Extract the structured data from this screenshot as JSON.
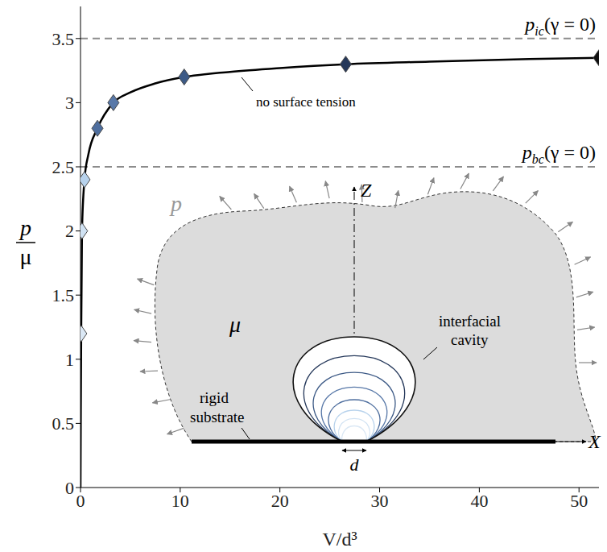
{
  "chart_data": {
    "type": "line",
    "xlabel": "V/d³",
    "ylabel": {
      "numerator": "p",
      "denominator": "μ"
    },
    "xlim": [
      0,
      52
    ],
    "xticks": [
      0,
      10,
      20,
      30,
      40,
      50
    ],
    "ylim": [
      0,
      3.75
    ],
    "yticks": [
      0,
      0.5,
      1,
      1.5,
      2,
      2.5,
      3,
      3.5
    ],
    "grid": false,
    "series": [
      {
        "name": "no surface tension",
        "type": "line",
        "color": "#000000",
        "line_style": "solid",
        "x": [
          0,
          0.03,
          0.07,
          0.15,
          0.4,
          0.8,
          1.7,
          3.3,
          5,
          7.5,
          10.4,
          15,
          20,
          26.6,
          35,
          45,
          52
        ],
        "values": [
          0,
          0.6,
          1.2,
          2.0,
          2.4,
          2.6,
          2.8,
          3.0,
          3.08,
          3.15,
          3.2,
          3.24,
          3.27,
          3.3,
          3.32,
          3.34,
          3.35
        ]
      },
      {
        "type": "scatter",
        "marker": "diamond",
        "colors": [
          "#dbe8f5",
          "#d0e2f3",
          "#b7d2ec",
          "#4e6e9e",
          "#5878a8",
          "#3d5a86",
          "#25385a",
          "#111111"
        ],
        "x": [
          0.07,
          0.15,
          0.4,
          1.7,
          3.3,
          10.4,
          26.6,
          52
        ],
        "values": [
          1.2,
          2.0,
          2.4,
          2.8,
          3.0,
          3.2,
          3.3,
          3.35
        ]
      }
    ],
    "reference_lines": [
      {
        "value": 3.5,
        "label": [
          "p",
          "ic",
          "(γ = 0)"
        ],
        "line_style": "dashed",
        "color": "#8c8c8c"
      },
      {
        "value": 2.5,
        "label": [
          "p",
          "bc",
          "(γ = 0)"
        ],
        "line_style": "dashed",
        "color": "#8c8c8c"
      }
    ]
  },
  "diagram": {
    "z_axis": "Z",
    "x_axis": "X",
    "load": "p",
    "modulus": "μ",
    "cavity": "interfacial cavity",
    "substrate": "rigid substrate",
    "contact": "d"
  }
}
